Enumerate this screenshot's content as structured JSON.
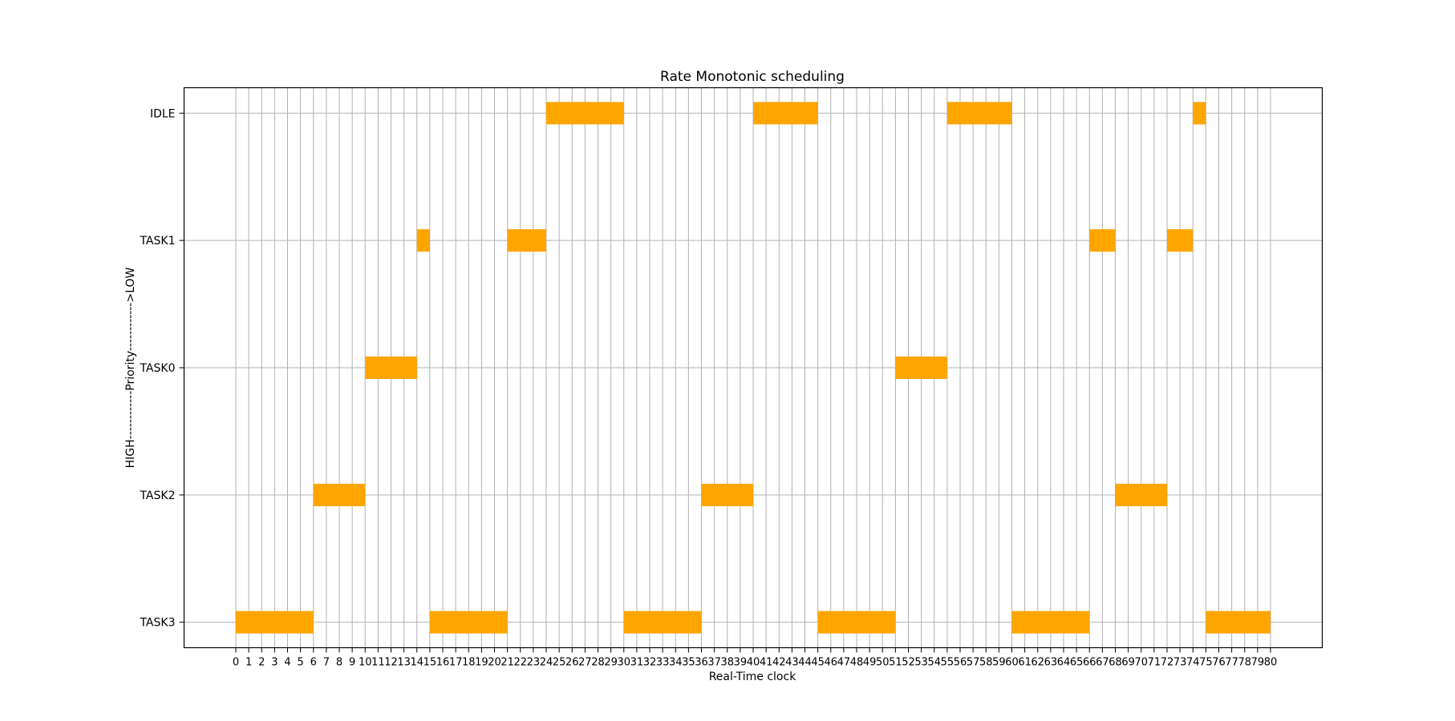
{
  "chart_data": {
    "type": "gantt",
    "title": "Rate Monotonic scheduling",
    "xlabel": "Real-Time clock",
    "ylabel": "HIGH------------Priority------------>LOW",
    "xlim": [
      -4,
      84
    ],
    "x_ticks": [
      0,
      1,
      2,
      3,
      4,
      5,
      6,
      7,
      8,
      9,
      10,
      11,
      12,
      13,
      14,
      15,
      16,
      17,
      18,
      19,
      20,
      21,
      22,
      23,
      24,
      25,
      26,
      27,
      28,
      29,
      30,
      31,
      32,
      33,
      34,
      35,
      36,
      37,
      38,
      39,
      40,
      41,
      42,
      43,
      44,
      45,
      46,
      47,
      48,
      49,
      50,
      51,
      52,
      53,
      54,
      55,
      56,
      57,
      58,
      59,
      60,
      61,
      62,
      63,
      64,
      65,
      66,
      67,
      68,
      69,
      70,
      71,
      72,
      73,
      74,
      75,
      76,
      77,
      78,
      79,
      80
    ],
    "categories": [
      "TASK3",
      "TASK2",
      "TASK0",
      "TASK1",
      "IDLE"
    ],
    "grid": true,
    "bar_color": "#FFA500",
    "grid_color": "#b0b0b0",
    "segments": [
      {
        "task": "TASK3",
        "start": 0,
        "end": 6
      },
      {
        "task": "TASK2",
        "start": 6,
        "end": 10
      },
      {
        "task": "TASK0",
        "start": 10,
        "end": 14
      },
      {
        "task": "TASK1",
        "start": 14,
        "end": 15
      },
      {
        "task": "TASK3",
        "start": 15,
        "end": 21
      },
      {
        "task": "TASK1",
        "start": 21,
        "end": 24
      },
      {
        "task": "IDLE",
        "start": 24,
        "end": 30
      },
      {
        "task": "TASK3",
        "start": 30,
        "end": 36
      },
      {
        "task": "TASK2",
        "start": 36,
        "end": 40
      },
      {
        "task": "IDLE",
        "start": 40,
        "end": 45
      },
      {
        "task": "TASK3",
        "start": 45,
        "end": 51
      },
      {
        "task": "TASK0",
        "start": 51,
        "end": 55
      },
      {
        "task": "IDLE",
        "start": 55,
        "end": 60
      },
      {
        "task": "TASK3",
        "start": 60,
        "end": 66
      },
      {
        "task": "TASK1",
        "start": 66,
        "end": 68
      },
      {
        "task": "TASK2",
        "start": 68,
        "end": 72
      },
      {
        "task": "TASK1",
        "start": 72,
        "end": 74
      },
      {
        "task": "IDLE",
        "start": 74,
        "end": 75
      },
      {
        "task": "TASK3",
        "start": 75,
        "end": 80
      }
    ]
  }
}
